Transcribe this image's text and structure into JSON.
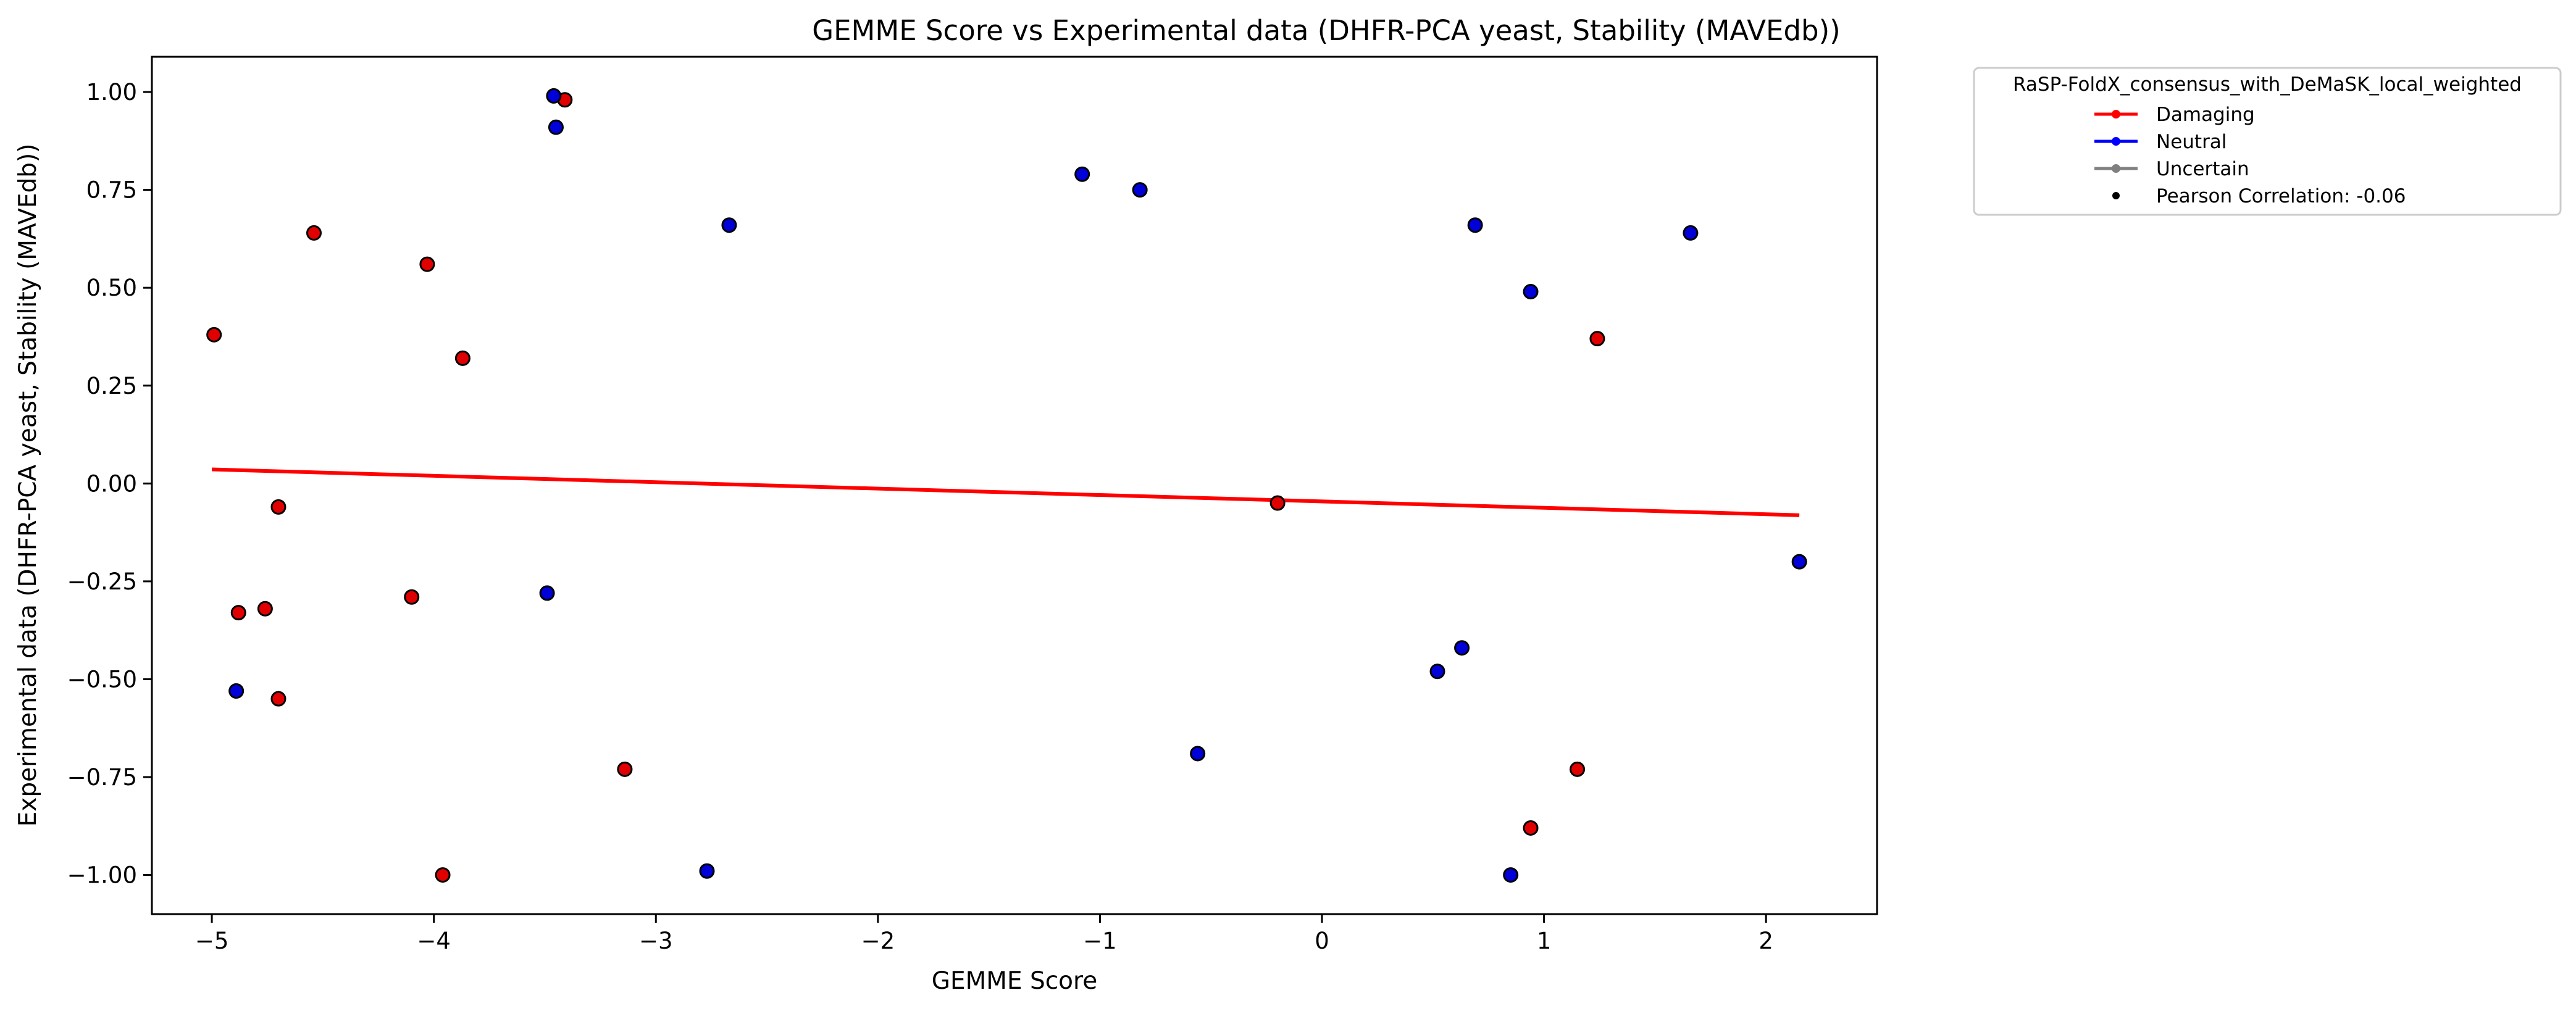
{
  "chart_data": {
    "type": "scatter",
    "title": "GEMME Score vs Experimental data (DHFR-PCA yeast, Stability (MAVEdb))",
    "xlabel": "GEMME Score",
    "ylabel": "Experimental data (DHFR-PCA yeast, Stability (MAVEdb))",
    "xlim": [
      -5.27,
      2.5
    ],
    "ylim": [
      -1.1,
      1.09
    ],
    "x_ticks": [
      -5,
      -4,
      -3,
      -2,
      -1,
      0,
      1,
      2
    ],
    "x_tick_labels": [
      "−5",
      "−4",
      "−3",
      "−2",
      "−1",
      "0",
      "1",
      "2"
    ],
    "y_ticks": [
      1.0,
      0.75,
      0.5,
      0.25,
      0.0,
      -0.25,
      -0.5,
      -0.75,
      -1.0
    ],
    "y_tick_labels": [
      "1.00",
      "0.75",
      "0.50",
      "0.25",
      "0.00",
      "−0.25",
      "−0.50",
      "−0.75",
      "−1.00"
    ],
    "grid": false,
    "legend": {
      "title": "RaSP-FoldX_consensus_with_DeMaSK_local_weighted",
      "placement": "outside-top-right",
      "entries": [
        {
          "label": "Damaging",
          "color": "#ff0000",
          "marker": "line-dot"
        },
        {
          "label": "Neutral",
          "color": "#0000ff",
          "marker": "line-dot"
        },
        {
          "label": "Uncertain",
          "color": "#808080",
          "marker": "line-dot"
        },
        {
          "label": "Pearson Correlation: -0.06",
          "color": "#000000",
          "marker": "dot"
        }
      ]
    },
    "series": [
      {
        "name": "Damaging",
        "color": "#e00000",
        "points": [
          {
            "x": -4.99,
            "y": 0.38
          },
          {
            "x": -4.54,
            "y": 0.64
          },
          {
            "x": -4.03,
            "y": 0.56
          },
          {
            "x": -3.87,
            "y": 0.32
          },
          {
            "x": -3.41,
            "y": 0.98
          },
          {
            "x": -4.7,
            "y": -0.06
          },
          {
            "x": -4.88,
            "y": -0.33
          },
          {
            "x": -4.76,
            "y": -0.32
          },
          {
            "x": -4.1,
            "y": -0.29
          },
          {
            "x": -4.7,
            "y": -0.55
          },
          {
            "x": -3.14,
            "y": -0.73
          },
          {
            "x": -3.96,
            "y": -1.0
          },
          {
            "x": -0.2,
            "y": -0.05
          },
          {
            "x": 1.24,
            "y": 0.37
          },
          {
            "x": 1.15,
            "y": -0.73
          },
          {
            "x": 0.94,
            "y": -0.88
          }
        ]
      },
      {
        "name": "Neutral",
        "color": "#0000d8",
        "points": [
          {
            "x": -3.46,
            "y": 0.99
          },
          {
            "x": -3.45,
            "y": 0.91
          },
          {
            "x": -2.67,
            "y": 0.66
          },
          {
            "x": -1.08,
            "y": 0.79
          },
          {
            "x": -0.82,
            "y": 0.75
          },
          {
            "x": -3.49,
            "y": -0.28
          },
          {
            "x": -4.89,
            "y": -0.53
          },
          {
            "x": -2.77,
            "y": -0.99
          },
          {
            "x": -0.56,
            "y": -0.69
          },
          {
            "x": 0.69,
            "y": 0.66
          },
          {
            "x": 0.94,
            "y": 0.49
          },
          {
            "x": 1.66,
            "y": 0.64
          },
          {
            "x": 2.15,
            "y": -0.2
          },
          {
            "x": 0.52,
            "y": -0.48
          },
          {
            "x": 0.63,
            "y": -0.42
          },
          {
            "x": 0.85,
            "y": -1.0
          }
        ]
      }
    ],
    "trendline": {
      "color": "#ff0000",
      "x": [
        -5.0,
        2.15
      ],
      "y": [
        0.036,
        -0.081
      ]
    }
  }
}
